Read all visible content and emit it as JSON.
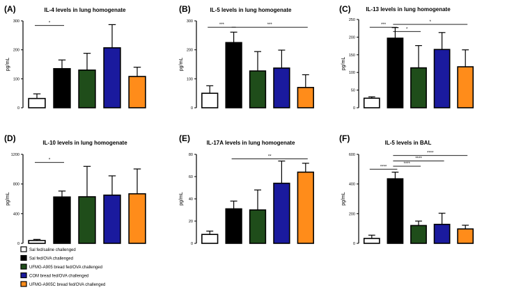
{
  "series_colors": [
    "#ffffff",
    "#000000",
    "#1f4d1a",
    "#1a1a9e",
    "#ff8c1a"
  ],
  "legend": {
    "entries": [
      "Sal fed/saline challenged",
      "Sal fed/OVA challenged",
      "UFMG-A905 bread fed/OVA challenged",
      "COM bread fed/OVA challenged",
      "UFMG-A905C bread fed/OVA challenged"
    ]
  },
  "chart_data": [
    {
      "panel": "(A)",
      "type": "bar",
      "title": "IL-4 levels in lung homogenate",
      "ylabel": "pg/mL",
      "ylim": [
        0,
        300
      ],
      "yticks": [
        0,
        100,
        200,
        300
      ],
      "tick_labels": [
        "0",
        "100",
        "200",
        "300"
      ],
      "values": [
        32,
        135,
        130,
        207,
        108
      ],
      "errors": [
        16,
        30,
        58,
        80,
        32
      ],
      "significance": [
        {
          "from": 0,
          "to": 1,
          "label": "*",
          "y": 284
        }
      ]
    },
    {
      "panel": "(B)",
      "type": "bar",
      "title": "IL-5 levels in lung homogenate",
      "ylabel": "pg/mL",
      "ylim": [
        0,
        300
      ],
      "yticks": [
        0,
        100,
        200,
        300
      ],
      "tick_labels": [
        "0",
        "100",
        "200",
        "300"
      ],
      "values": [
        50,
        225,
        127,
        137,
        70
      ],
      "errors": [
        26,
        36,
        67,
        62,
        44
      ],
      "significance": [
        {
          "from": 0,
          "to": 1,
          "label": "***",
          "y": 278
        },
        {
          "from": 1,
          "to": 4,
          "label": "***",
          "y": 278
        }
      ]
    },
    {
      "panel": "(C)",
      "type": "bar",
      "title": "IL-13 levels in lung homogenate",
      "ylabel": "pg/mL",
      "ylim": [
        0,
        250
      ],
      "yticks": [
        0,
        50,
        100,
        150,
        200,
        250
      ],
      "tick_labels": [
        "0",
        "50",
        "100",
        "150",
        "200",
        "250"
      ],
      "values": [
        27,
        197,
        113,
        165,
        116
      ],
      "errors": [
        4,
        30,
        63,
        48,
        48
      ],
      "significance": [
        {
          "from": 0,
          "to": 1,
          "label": "***",
          "y": 228
        },
        {
          "from": 1,
          "to": 2,
          "label": "*",
          "y": 216
        },
        {
          "from": 1,
          "to": 4,
          "label": "*",
          "y": 236
        }
      ]
    },
    {
      "panel": "(D)",
      "type": "bar",
      "title": "IL-10 levels in lung homogenate",
      "ylabel": "pg/mL",
      "ylim": [
        0,
        1200
      ],
      "yticks": [
        0,
        400,
        800,
        1200
      ],
      "tick_labels": [
        "0",
        "400",
        "800",
        "1200"
      ],
      "values": [
        38,
        625,
        628,
        650,
        668
      ],
      "errors": [
        15,
        80,
        410,
        260,
        335
      ],
      "significance": [
        {
          "from": 0,
          "to": 1,
          "label": "*",
          "y": 1090
        }
      ]
    },
    {
      "panel": "(E)",
      "type": "bar",
      "title": "IL-17A levels in lung homogenate",
      "ylabel": "pg/mL",
      "ylim": [
        0,
        80
      ],
      "yticks": [
        0,
        20,
        40,
        60,
        80
      ],
      "tick_labels": [
        "0",
        "20",
        "40",
        "60",
        "80"
      ],
      "values": [
        8,
        31,
        30,
        54,
        64
      ],
      "errors": [
        3,
        7,
        18,
        20,
        8
      ],
      "significance": [
        {
          "from": 1,
          "to": 4,
          "label": "**",
          "y": 76
        }
      ]
    },
    {
      "panel": "(F)",
      "type": "bar",
      "title": "IL-5 levels in BAL",
      "ylabel": "pg/mL",
      "ylim": [
        0,
        600
      ],
      "yticks": [
        0,
        200,
        400,
        600
      ],
      "tick_labels": [
        "0",
        "200",
        "400",
        "600"
      ],
      "values": [
        33,
        435,
        120,
        128,
        97
      ],
      "errors": [
        22,
        45,
        30,
        75,
        25
      ],
      "significance": [
        {
          "from": 0,
          "to": 1,
          "label": "****",
          "y": 500
        },
        {
          "from": 1,
          "to": 2,
          "label": "****",
          "y": 520
        },
        {
          "from": 1,
          "to": 3,
          "label": "****",
          "y": 555
        },
        {
          "from": 1,
          "to": 4,
          "label": "****",
          "y": 592
        }
      ]
    }
  ]
}
